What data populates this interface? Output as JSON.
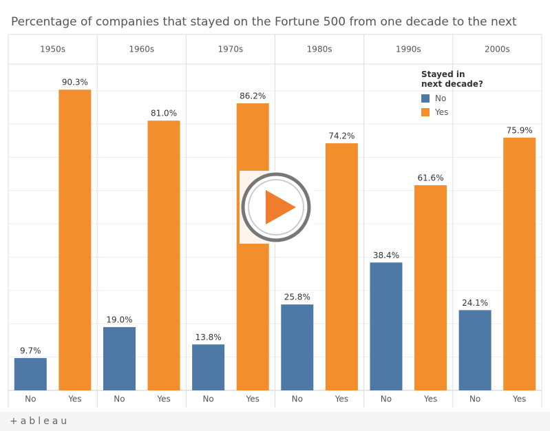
{
  "chart_data": {
    "type": "bar",
    "title": "Percentage of companies that stayed on the Fortune 500 from one decade to the next",
    "facets": [
      "1950s",
      "1960s",
      "1970s",
      "1980s",
      "1990s",
      "2000s"
    ],
    "legend_title": "Stayed in next decade?",
    "series": [
      {
        "name": "No",
        "color": "#4e79a7",
        "values": [
          9.7,
          19.0,
          13.8,
          25.8,
          38.4,
          24.1
        ],
        "value_labels": [
          "9.7%",
          "19.0%",
          "13.8%",
          "25.8%",
          "38.4%",
          "24.1%"
        ]
      },
      {
        "name": "Yes",
        "color": "#f28e2b",
        "values": [
          90.3,
          81.0,
          86.2,
          74.2,
          61.6,
          75.9
        ],
        "value_labels": [
          "90.3%",
          "81.0%",
          "86.2%",
          "74.2%",
          "61.6%",
          "75.9%"
        ]
      }
    ],
    "ylim": [
      0,
      98
    ],
    "yticks": [
      0,
      10,
      20,
      30,
      40,
      50,
      60,
      70,
      80,
      90
    ],
    "grid": true
  },
  "footer": {
    "brand": "+ableau"
  }
}
